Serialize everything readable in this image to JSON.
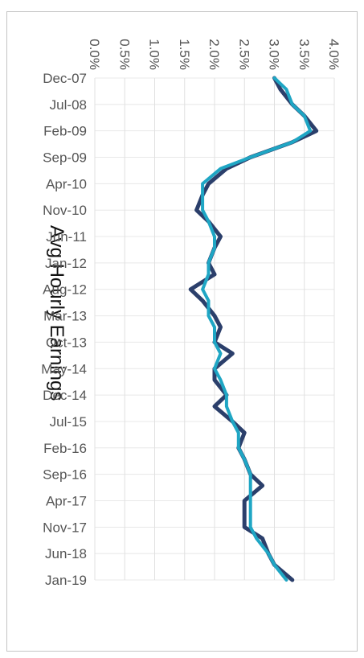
{
  "chart_data": {
    "type": "line",
    "title": "Avg Hourly Earnings",
    "xlabel": "",
    "ylabel": "",
    "ylim": [
      0,
      4.0
    ],
    "y_ticks": [
      "0.0%",
      "0.5%",
      "1.0%",
      "1.5%",
      "2.0%",
      "2.5%",
      "3.0%",
      "3.5%",
      "4.0%"
    ],
    "x_ticks": [
      "Dec-07",
      "Jul-08",
      "Feb-09",
      "Sep-09",
      "Apr-10",
      "Nov-10",
      "Jun-11",
      "Jan-12",
      "Aug-12",
      "Mar-13",
      "Oct-13",
      "May-14",
      "Dec-14",
      "Jul-15",
      "Feb-16",
      "Sep-16",
      "Apr-17",
      "Nov-17",
      "Jun-18",
      "Jan-19"
    ],
    "grid": true,
    "orientation": "rotated-90-clockwise",
    "series": [
      {
        "color": "#2b3f6b",
        "x": [
          "Dec-07",
          "Mar-08",
          "Jul-08",
          "Oct-08",
          "Feb-09",
          "May-09",
          "Sep-09",
          "Dec-09",
          "Apr-10",
          "Jul-10",
          "Nov-10",
          "Feb-11",
          "Jun-11",
          "Sep-11",
          "Jan-12",
          "Apr-12",
          "Aug-12",
          "Nov-12",
          "Mar-13",
          "Jun-13",
          "Oct-13",
          "Jan-14",
          "May-14",
          "Aug-14",
          "Dec-14",
          "Mar-15",
          "Jul-15",
          "Oct-15",
          "Feb-16",
          "May-16",
          "Sep-16",
          "Dec-16",
          "Apr-17",
          "Jul-17",
          "Nov-17",
          "Feb-18",
          "Jun-18",
          "Sep-18",
          "Jan-19"
        ],
        "values": [
          3.0,
          3.1,
          3.3,
          3.5,
          3.7,
          3.3,
          2.6,
          2.2,
          1.9,
          1.8,
          1.7,
          1.9,
          2.1,
          2.0,
          1.9,
          2.0,
          1.6,
          1.8,
          2.0,
          2.1,
          2.0,
          2.3,
          2.0,
          2.0,
          2.2,
          2.0,
          2.3,
          2.5,
          2.4,
          2.5,
          2.6,
          2.8,
          2.5,
          2.5,
          2.5,
          2.8,
          2.9,
          3.0,
          3.3
        ]
      },
      {
        "color": "#1fa6c4",
        "x": [
          "Dec-07",
          "Mar-08",
          "Jul-08",
          "Oct-08",
          "Feb-09",
          "May-09",
          "Sep-09",
          "Dec-09",
          "Apr-10",
          "Jul-10",
          "Nov-10",
          "Feb-11",
          "Jun-11",
          "Sep-11",
          "Jan-12",
          "Apr-12",
          "Aug-12",
          "Nov-12",
          "Mar-13",
          "Jun-13",
          "Oct-13",
          "Jan-14",
          "May-14",
          "Aug-14",
          "Dec-14",
          "Mar-15",
          "Jul-15",
          "Oct-15",
          "Feb-16",
          "May-16",
          "Sep-16",
          "Dec-16",
          "Apr-17",
          "Jul-17",
          "Nov-17",
          "Feb-18",
          "Jun-18",
          "Sep-18",
          "Jan-19"
        ],
        "values": [
          3.0,
          3.2,
          3.3,
          3.5,
          3.6,
          3.3,
          2.6,
          2.1,
          1.8,
          1.8,
          1.8,
          1.9,
          2.0,
          2.0,
          1.9,
          1.9,
          1.8,
          1.9,
          1.9,
          2.0,
          2.0,
          2.1,
          2.0,
          2.1,
          2.2,
          2.2,
          2.3,
          2.4,
          2.4,
          2.5,
          2.6,
          2.6,
          2.6,
          2.6,
          2.6,
          2.7,
          2.9,
          3.0,
          3.2
        ]
      }
    ]
  }
}
